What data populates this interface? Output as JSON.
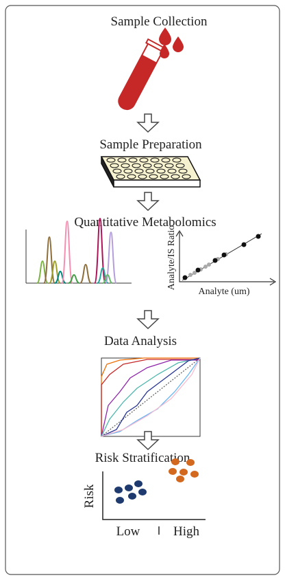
{
  "steps": [
    {
      "title": "Sample Collection"
    },
    {
      "title": "Sample Preparation"
    },
    {
      "title": "Quantitative Metabolomics"
    },
    {
      "title": "Data Analysis"
    },
    {
      "title": "Risk Stratification"
    }
  ],
  "calibration": {
    "y_label": "Analyte/IS Ratio",
    "x_label": "Analyte (um)"
  },
  "risk": {
    "y_label": "Risk",
    "x_categories": [
      "Low",
      "High"
    ]
  }
}
